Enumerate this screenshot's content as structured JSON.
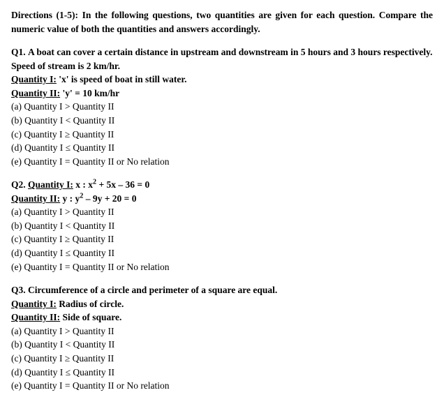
{
  "directions": "Directions (1-5): In the following questions, two quantities are given for each question. Compare the numeric value of both the quantities and answers accordingly.",
  "q1": {
    "number": "Q1.",
    "stem": "A boat can cover a certain distance in upstream and downstream in 5 hours and 3 hours respectively. Speed of stream is 2 km/hr.",
    "qty1_label": "Quantity I:",
    "qty1_text": " 'x' is speed of boat in still water.",
    "qty2_label": "Quantity II:",
    "qty2_text": " 'y' = 10 km/hr"
  },
  "q2": {
    "number": "Q2.",
    "qty1_label": "Quantity I:",
    "qty1_prefix": " x : x",
    "qty1_exp1": "2",
    "qty1_mid": " + 5x – 36 = 0",
    "qty2_label": "Quantity II:",
    "qty2_prefix": " y : y",
    "qty2_exp1": "2",
    "qty2_mid": " – 9y + 20 = 0"
  },
  "q3": {
    "number": "Q3.",
    "stem": "Circumference of a circle and perimeter of a square are equal.",
    "qty1_label": "Quantity I:",
    "qty1_text": " Radius of circle.",
    "qty2_label": "Quantity II:",
    "qty2_text": " Side of square."
  },
  "options": {
    "a": "(a) Quantity I > Quantity II",
    "b": "(b) Quantity I < Quantity II",
    "c": "(c) Quantity I ≥ Quantity II",
    "d": "(d) Quantity I ≤ Quantity II",
    "e": "(e) Quantity I = Quantity II or No relation"
  }
}
